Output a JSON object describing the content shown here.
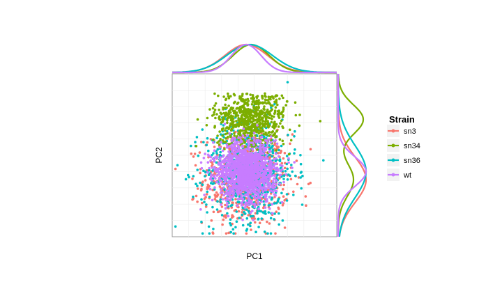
{
  "chart_data": {
    "type": "scatter",
    "title": "",
    "xlabel": "PC1",
    "ylabel": "PC2",
    "xlim": [
      0,
      100
    ],
    "ylim": [
      0,
      100
    ],
    "grid": true,
    "legend": {
      "title": "Strain",
      "placement": "right"
    },
    "marginal": {
      "top": "density of PC1",
      "right": "density of PC2"
    },
    "series": [
      {
        "name": "sn3",
        "color": "#F8766D",
        "center": [
          45,
          35
        ],
        "spread": [
          13,
          14
        ]
      },
      {
        "name": "sn34",
        "color": "#7CAE00",
        "center": [
          48,
          72
        ],
        "spread": [
          11,
          9
        ]
      },
      {
        "name": "sn36",
        "color": "#00BFC4",
        "center": [
          47,
          40
        ],
        "spread": [
          14,
          16
        ]
      },
      {
        "name": "wt",
        "color": "#C77CFF",
        "center": [
          45,
          40
        ],
        "spread": [
          9,
          9
        ]
      }
    ]
  }
}
